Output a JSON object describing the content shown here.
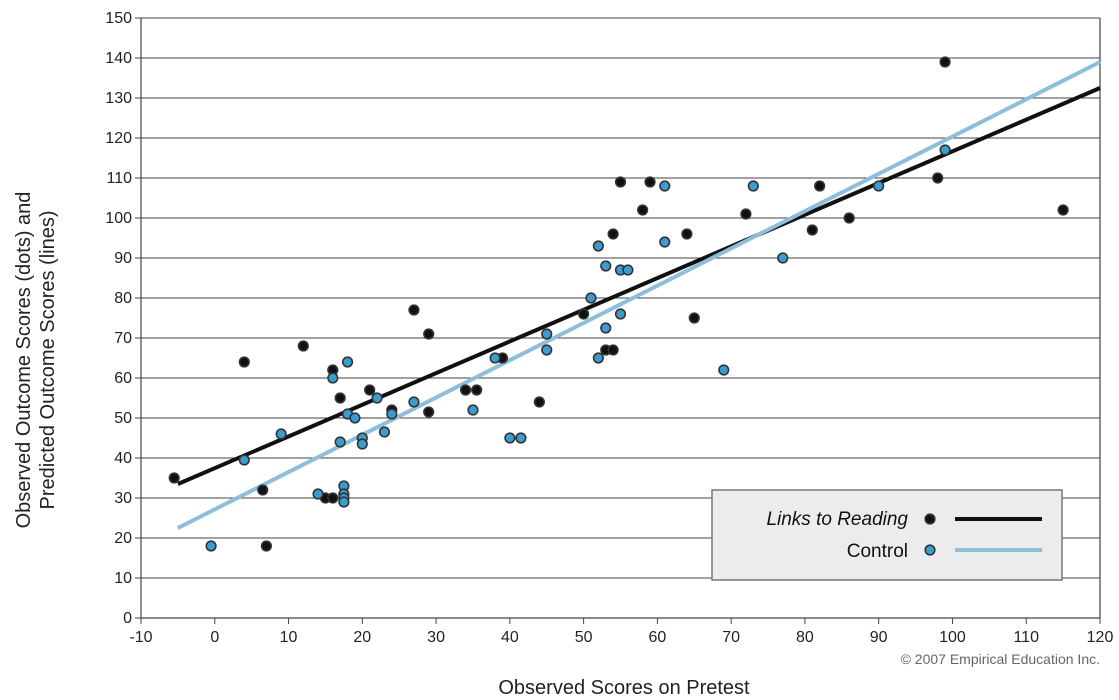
{
  "chart_data": {
    "type": "scatter",
    "title": "",
    "xlabel": "Observed Scores on Pretest",
    "ylabel_lines": [
      "Observed Outcome Scores (dots) and",
      "Predicted Outcome Scores (lines)"
    ],
    "xlim": [
      -10,
      120
    ],
    "ylim": [
      0,
      150
    ],
    "x_ticks": [
      -10,
      0,
      10,
      20,
      30,
      40,
      50,
      60,
      70,
      80,
      90,
      100,
      110,
      120
    ],
    "y_ticks": [
      0,
      10,
      20,
      30,
      40,
      50,
      60,
      70,
      80,
      90,
      100,
      110,
      120,
      130,
      140,
      150
    ],
    "grid": "horizontal",
    "legend_position": "bottom-right",
    "copyright": "© 2007 Empirical Education Inc.",
    "colors": {
      "treatment": "#111111",
      "control": "#3a9ccf",
      "control_line": "#8dbedb",
      "treatment_line": "#111111"
    },
    "series": [
      {
        "name": "Links to Reading",
        "marker_color": "#111111",
        "points": [
          [
            -5.5,
            35
          ],
          [
            4,
            64
          ],
          [
            6.5,
            32
          ],
          [
            7,
            18
          ],
          [
            12,
            68
          ],
          [
            15,
            30
          ],
          [
            16,
            62
          ],
          [
            16,
            30
          ],
          [
            17,
            55
          ],
          [
            21,
            57
          ],
          [
            24,
            52
          ],
          [
            27,
            77
          ],
          [
            29,
            71
          ],
          [
            29,
            51.5
          ],
          [
            34,
            57
          ],
          [
            35.5,
            57
          ],
          [
            39,
            65
          ],
          [
            44,
            54
          ],
          [
            50,
            76
          ],
          [
            53,
            67
          ],
          [
            54,
            67
          ],
          [
            54,
            96
          ],
          [
            55,
            109
          ],
          [
            58,
            102
          ],
          [
            59,
            109
          ],
          [
            64,
            96
          ],
          [
            65,
            75
          ],
          [
            72,
            101
          ],
          [
            81,
            97
          ],
          [
            82,
            108
          ],
          [
            86,
            100
          ],
          [
            98,
            110
          ],
          [
            99,
            139
          ],
          [
            115,
            102
          ]
        ],
        "fit_line": [
          [
            -5,
            33.5
          ],
          [
            120,
            132.5
          ]
        ]
      },
      {
        "name": "Control",
        "marker_color": "#3a9ccf",
        "points": [
          [
            -0.5,
            18
          ],
          [
            4,
            39.5
          ],
          [
            9,
            46
          ],
          [
            14,
            31
          ],
          [
            16,
            60
          ],
          [
            17,
            44
          ],
          [
            17.5,
            33
          ],
          [
            17.5,
            31
          ],
          [
            17.5,
            30
          ],
          [
            17.5,
            29
          ],
          [
            18,
            64
          ],
          [
            18,
            51
          ],
          [
            19,
            50
          ],
          [
            20,
            45
          ],
          [
            20,
            43.5
          ],
          [
            22,
            55
          ],
          [
            23,
            46.5
          ],
          [
            24,
            51
          ],
          [
            27,
            54
          ],
          [
            35,
            52
          ],
          [
            38,
            65
          ],
          [
            40,
            45
          ],
          [
            41.5,
            45
          ],
          [
            45,
            71
          ],
          [
            45,
            67
          ],
          [
            51,
            80
          ],
          [
            52,
            93
          ],
          [
            52,
            65
          ],
          [
            53,
            88
          ],
          [
            53,
            72.5
          ],
          [
            55,
            87
          ],
          [
            55,
            76
          ],
          [
            56,
            87
          ],
          [
            61,
            108
          ],
          [
            61,
            94
          ],
          [
            69,
            62
          ],
          [
            73,
            108
          ],
          [
            77,
            90
          ],
          [
            90,
            108
          ],
          [
            99,
            117
          ]
        ],
        "fit_line": [
          [
            -5,
            22.5
          ],
          [
            120,
            139
          ]
        ]
      }
    ]
  }
}
